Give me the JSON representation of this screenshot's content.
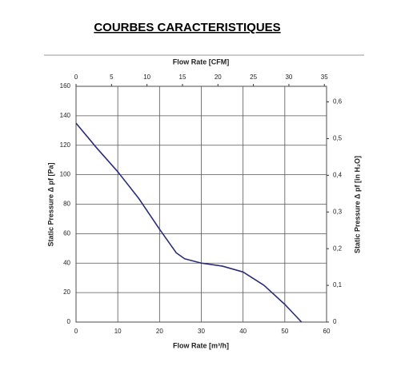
{
  "chart_data": {
    "type": "line",
    "title": "COURBES CARACTERISTIQUES",
    "x_label": "Flow Rate [m³/h]",
    "x2_label": "Flow Rate [CFM]",
    "y_label": "Static Pressure Δ pf [Pa]",
    "y2_label": "Static Pressure Δ pf [in H₂O]",
    "x": [
      0,
      5,
      10,
      15,
      20,
      22,
      24,
      26,
      30,
      35,
      40,
      45,
      50,
      54
    ],
    "series": [
      {
        "color": "#2b2d7a",
        "values": [
          135,
          118,
          102,
          84,
          63,
          55,
          47,
          43,
          40,
          38,
          34,
          25,
          12,
          0
        ]
      }
    ],
    "xlim": [
      0,
      60
    ],
    "xticks": [
      0,
      10,
      20,
      30,
      40,
      50,
      60
    ],
    "x2lim": [
      0,
      35.31
    ],
    "x2ticks": [
      0,
      5,
      10,
      15,
      20,
      25,
      30,
      35
    ],
    "ylim": [
      0,
      160
    ],
    "yticks": [
      0,
      20,
      40,
      60,
      80,
      100,
      120,
      140,
      160
    ],
    "y2lim": [
      0,
      0.6425
    ],
    "y2ticks": [
      0,
      {
        "value": 0.1,
        "label": "0,1"
      },
      {
        "value": 0.2,
        "label": "0,2"
      },
      {
        "value": 0.3,
        "label": "0,3"
      },
      {
        "value": 0.4,
        "label": "0,4"
      },
      {
        "value": 0.5,
        "label": "0,5"
      },
      {
        "value": 0.6,
        "label": "0,6"
      }
    ],
    "grid": true
  }
}
